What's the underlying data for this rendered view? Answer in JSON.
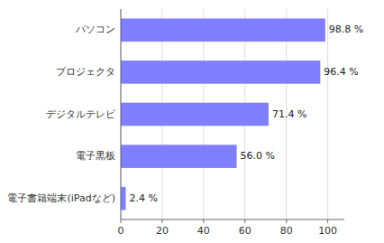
{
  "chart_data": {
    "type": "bar",
    "orientation": "horizontal",
    "categories": [
      "電子書籍端末(iPadなど)",
      "電子黒板",
      "デジタルテレビ",
      "プロジェクタ",
      "パソコン"
    ],
    "values": [
      2.4,
      56.0,
      71.4,
      96.4,
      98.8
    ],
    "value_labels": [
      "2.4 %",
      "56.0 %",
      "71.4 %",
      "96.4 %",
      "98.8 %"
    ],
    "data_labels": true,
    "color": "#8080FF",
    "xlim": [
      0,
      108
    ],
    "xticks": [
      0,
      20,
      40,
      60,
      80,
      100
    ],
    "grid": true
  }
}
